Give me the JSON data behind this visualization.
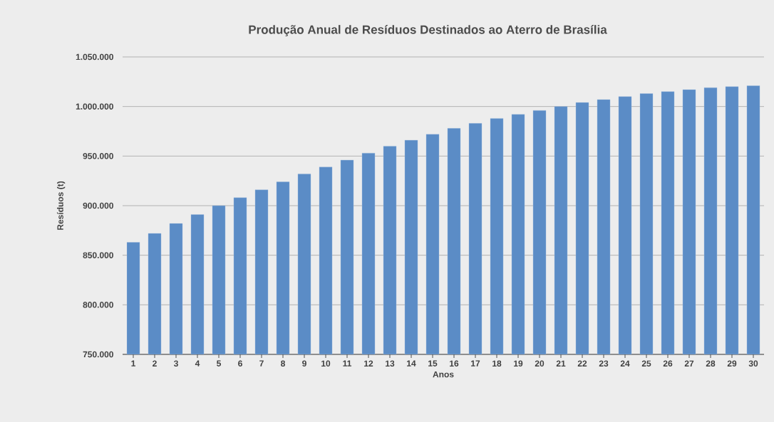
{
  "chart_data": {
    "type": "bar",
    "title": "Produção Anual de Resíduos Destinados ao Aterro de Brasília",
    "xlabel": "Anos",
    "ylabel": "Resíduos (t)",
    "categories": [
      "1",
      "2",
      "3",
      "4",
      "5",
      "6",
      "7",
      "8",
      "9",
      "10",
      "11",
      "12",
      "13",
      "14",
      "15",
      "16",
      "17",
      "18",
      "19",
      "20",
      "21",
      "22",
      "23",
      "24",
      "25",
      "26",
      "27",
      "28",
      "29",
      "30"
    ],
    "values": [
      863000,
      872000,
      882000,
      891000,
      900000,
      908000,
      916000,
      924000,
      932000,
      939000,
      946000,
      953000,
      960000,
      966000,
      972000,
      978000,
      983000,
      988000,
      992000,
      996000,
      1000000,
      1004000,
      1007000,
      1010000,
      1013000,
      1015000,
      1017000,
      1019000,
      1020000,
      1021000
    ],
    "color": "#5b8cc6",
    "ylim": [
      750000,
      1050000
    ],
    "yticks": [
      {
        "value": 750000,
        "label": "750.000"
      },
      {
        "value": 800000,
        "label": "800.000"
      },
      {
        "value": 850000,
        "label": "850.000"
      },
      {
        "value": 900000,
        "label": "900.000"
      },
      {
        "value": 950000,
        "label": "950.000"
      },
      {
        "value": 1000000,
        "label": "1.000.000"
      },
      {
        "value": 1050000,
        "label": "1.050.000"
      }
    ],
    "grid": "y"
  }
}
